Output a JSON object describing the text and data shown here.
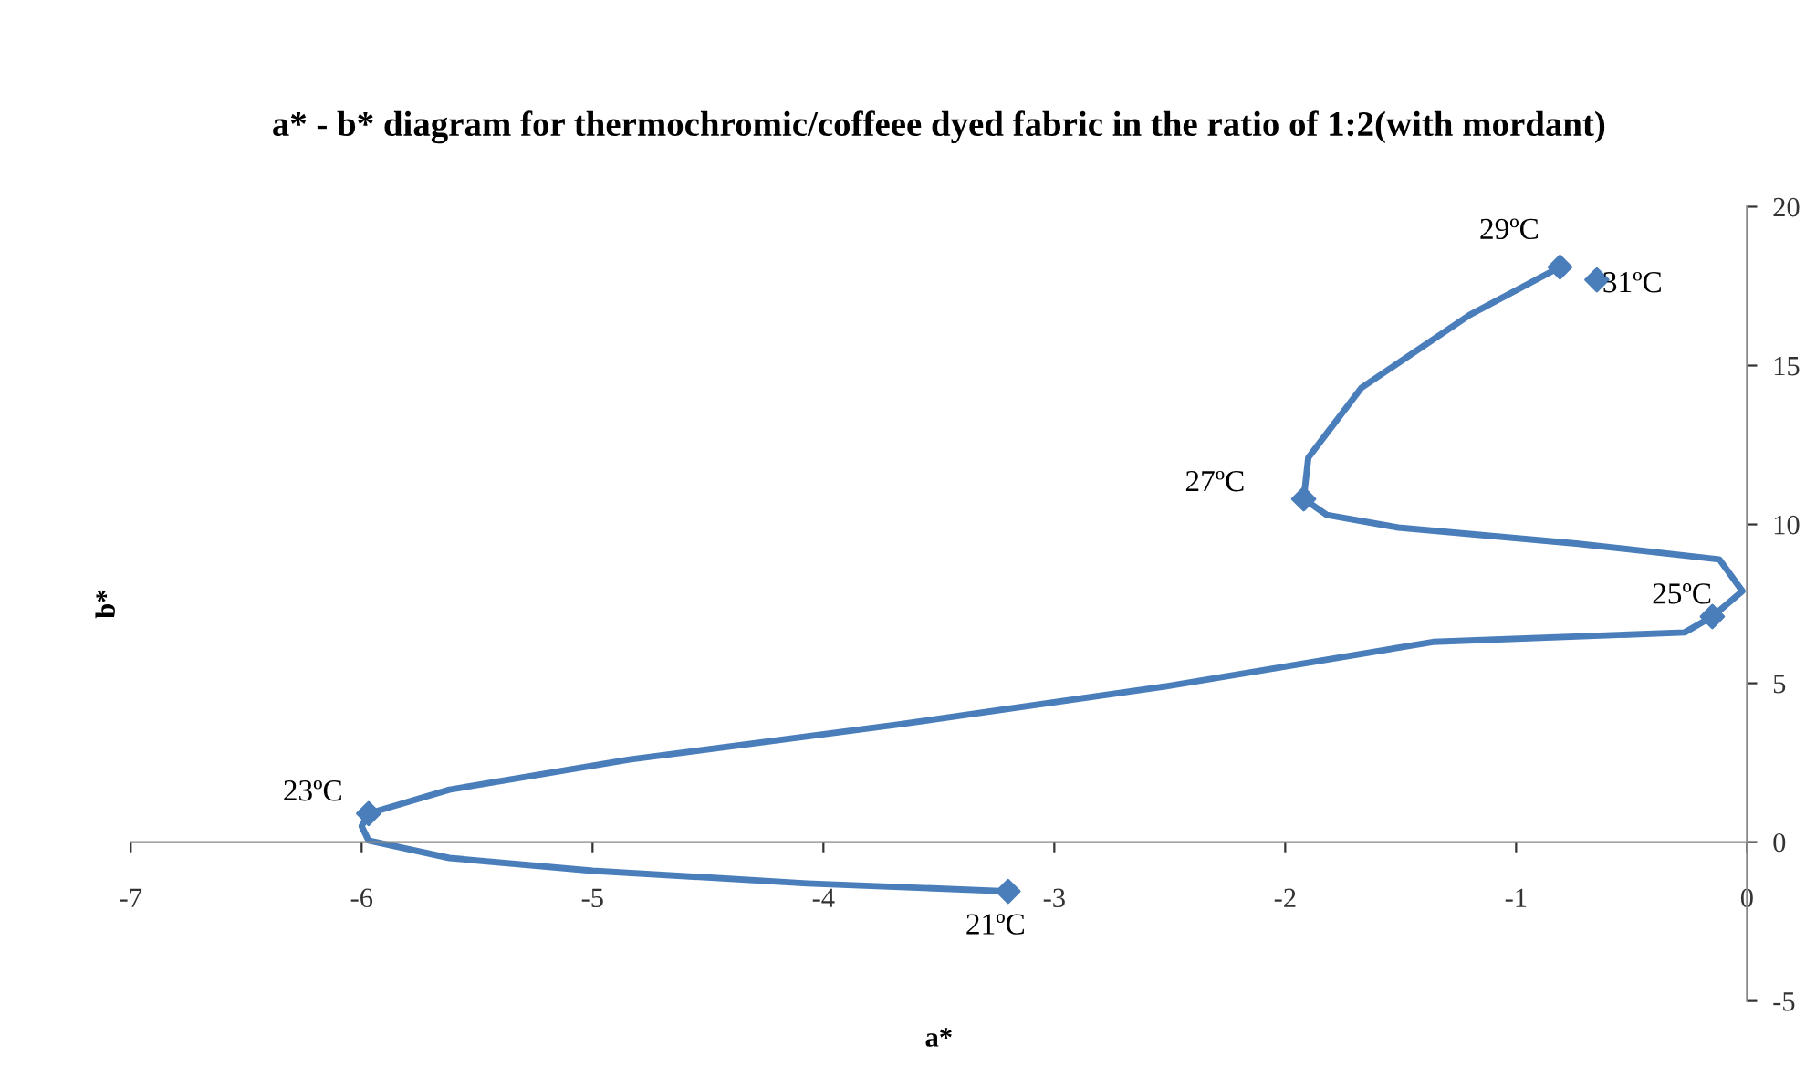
{
  "chart_data": {
    "type": "line",
    "title": "a* - b* diagram for thermochromic/coffeee dyed fabric in the ratio of 1:2(with mordant)",
    "xlabel": "a*",
    "ylabel": "b*",
    "series": [
      {
        "marker": "none",
        "color": "#4a7ebb",
        "x": [
          -3.2,
          -4.07,
          -5.0,
          -5.62,
          -5.97,
          -6.0,
          -5.97,
          -5.62,
          -4.84,
          -3.68,
          -2.52,
          -1.36,
          -0.27,
          -0.15,
          -0.02,
          -0.12,
          -0.74,
          -1.51,
          -1.82,
          -1.92,
          -1.9,
          -1.67,
          -1.2,
          -0.81
        ],
        "values": [
          -1.55,
          -1.3,
          -0.9,
          -0.5,
          0.05,
          0.5,
          0.9,
          1.65,
          2.6,
          3.7,
          4.9,
          6.3,
          6.6,
          7.1,
          7.9,
          8.9,
          9.4,
          9.9,
          10.3,
          10.8,
          12.1,
          14.3,
          16.6,
          18.1
        ]
      },
      {
        "type": "scatter",
        "marker": "diamond",
        "color": "#4a7ebb",
        "x": [
          -3.2,
          -5.97,
          -0.15,
          -1.92,
          -0.81,
          -0.65
        ],
        "values": [
          -1.55,
          0.9,
          7.1,
          10.8,
          18.1,
          17.7
        ]
      }
    ],
    "line_style": "solid",
    "grid": false,
    "legend": false,
    "xlim": [
      -7,
      0
    ],
    "xticks": [
      -7,
      -6,
      -5,
      -4,
      -3,
      -2,
      -1,
      0
    ],
    "ylim": [
      -5,
      20
    ],
    "yticks": [
      -5,
      0,
      5,
      10,
      15,
      20
    ],
    "annotations": [
      {
        "text": "21ºC",
        "x": -3.2,
        "y": -1.55
      },
      {
        "text": "23ºC",
        "x": -5.97,
        "y": 0.9
      },
      {
        "text": "25ºC",
        "x": -0.15,
        "y": 7.1
      },
      {
        "text": "27ºC",
        "x": -1.92,
        "y": 10.8
      },
      {
        "text": "29ºC",
        "x": -0.81,
        "y": 18.1
      },
      {
        "text": "31ºC",
        "x": -0.65,
        "y": 17.7
      }
    ]
  }
}
